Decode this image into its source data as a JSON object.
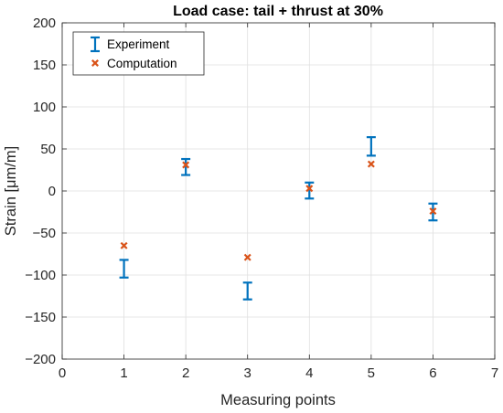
{
  "chart_data": {
    "type": "errorbar-scatter",
    "title": "Load case: tail + thrust at 30%",
    "xlabel": "Measuring points",
    "ylabel": "Strain [μm/m]",
    "xlim": [
      0,
      7
    ],
    "ylim": [
      -200,
      200
    ],
    "xticks": [
      0,
      1,
      2,
      3,
      4,
      5,
      6,
      7
    ],
    "yticks": [
      -200,
      -150,
      -100,
      -50,
      0,
      50,
      100,
      150,
      200
    ],
    "grid": true,
    "legend_position": "top-left",
    "series": [
      {
        "name": "Experiment",
        "kind": "errorbar",
        "color": "#0072BD",
        "points": [
          {
            "x": 1,
            "low": -103,
            "high": -82
          },
          {
            "x": 2,
            "low": 19,
            "high": 38
          },
          {
            "x": 3,
            "low": -129,
            "high": -109
          },
          {
            "x": 4,
            "low": -9,
            "high": 10
          },
          {
            "x": 5,
            "low": 42,
            "high": 64
          },
          {
            "x": 6,
            "low": -35,
            "high": -15
          }
        ]
      },
      {
        "name": "Computation",
        "kind": "marker",
        "color": "#D95319",
        "points": [
          {
            "x": 1,
            "y": -65
          },
          {
            "x": 2,
            "y": 31
          },
          {
            "x": 3,
            "y": -79
          },
          {
            "x": 4,
            "y": 3
          },
          {
            "x": 5,
            "y": 32
          },
          {
            "x": 6,
            "y": -24
          }
        ]
      }
    ]
  }
}
